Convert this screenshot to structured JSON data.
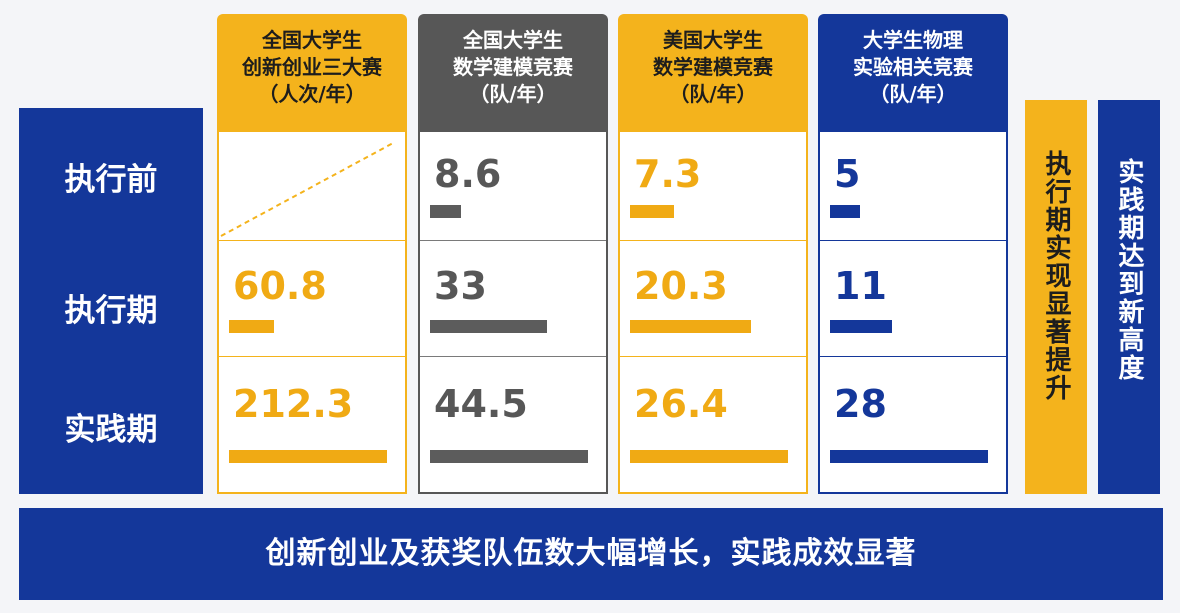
{
  "colors": {
    "yellow": "#f4b31c",
    "gray": "#575757",
    "blue": "#14379a"
  },
  "chart_data": {
    "type": "bar",
    "categories": [
      "执行前",
      "执行期",
      "实践期"
    ],
    "series": [
      {
        "name": "全国大学生创新创业三大赛（人次/年）",
        "header_lines": [
          "全国大学生",
          "创新创业三大赛",
          "（人次/年）"
        ],
        "values": [
          null,
          60.8,
          212.3
        ],
        "labels": [
          "",
          "60.8",
          "212.3"
        ]
      },
      {
        "name": "全国大学生数学建模竞赛（队/年）",
        "header_lines": [
          "全国大学生",
          "数学建模竞赛",
          "（队/年）"
        ],
        "values": [
          8.6,
          33,
          44.5
        ],
        "labels": [
          "8.6",
          "33",
          "44.5"
        ]
      },
      {
        "name": "美国大学生数学建模竞赛（队/年）",
        "header_lines": [
          "美国大学生",
          "数学建模竞赛",
          "（队/年）"
        ],
        "values": [
          7.3,
          20.3,
          26.4
        ],
        "labels": [
          "7.3",
          "20.3",
          "26.4"
        ]
      },
      {
        "name": "大学生物理实验相关竞赛（队/年）",
        "header_lines": [
          "大学生物理",
          "实验相关竞赛",
          "（队/年）"
        ],
        "values": [
          5,
          11,
          28
        ],
        "labels": [
          "5",
          "11",
          "28"
        ]
      }
    ]
  },
  "side_notes": {
    "execution": "执行期实现显著提升",
    "practice": "实践期达到新高度"
  },
  "footer": "创新创业及获奖队伍数大幅增长，实践成效显著"
}
